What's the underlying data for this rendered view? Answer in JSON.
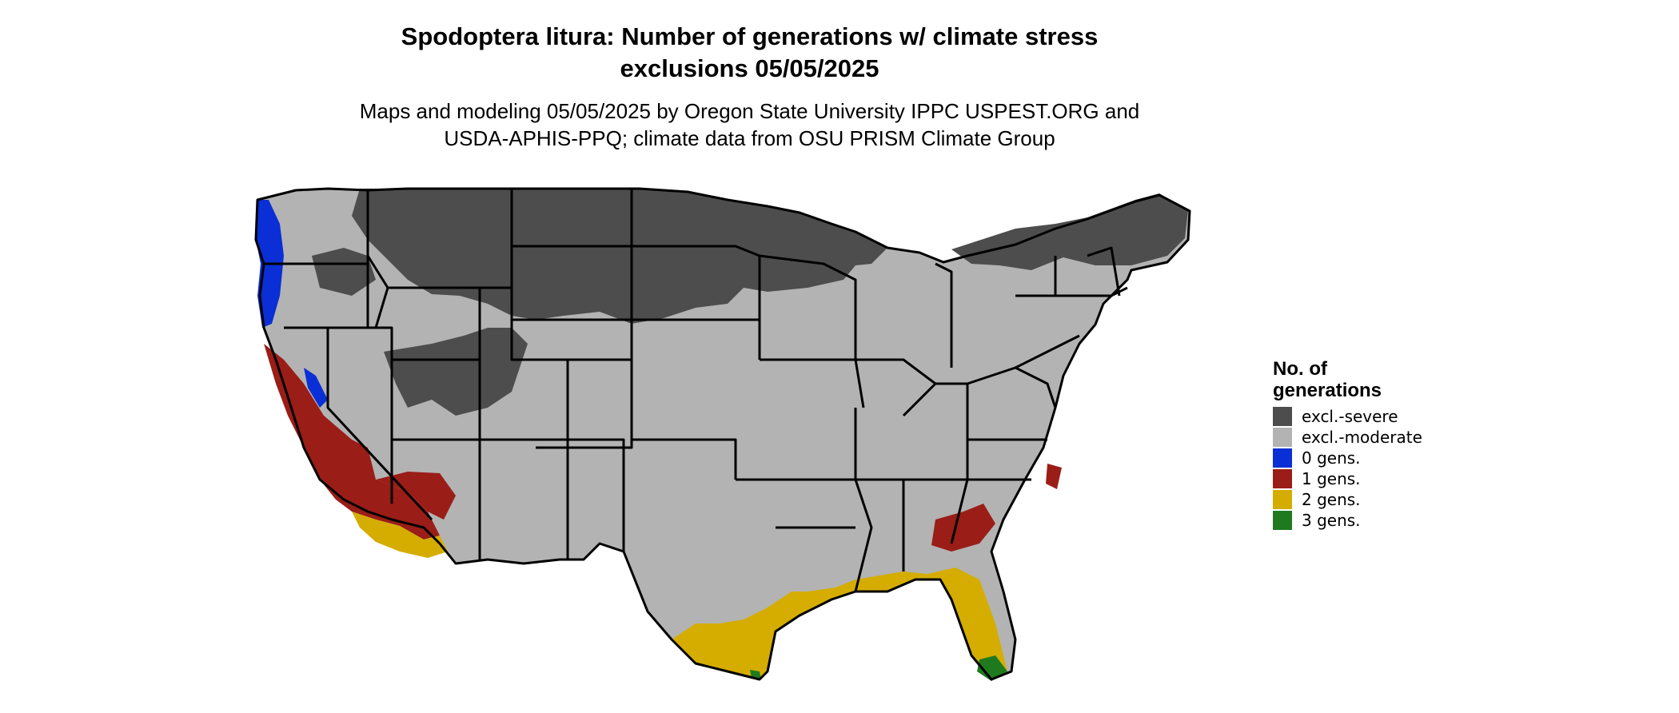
{
  "title_line1": "Spodoptera litura: Number of generations w/ climate stress",
  "title_line2": "exclusions 05/05/2025",
  "subtitle_line1": "Maps and modeling 05/05/2025 by Oregon State University IPPC USPEST.ORG and",
  "subtitle_line2": "USDA-APHIS-PPQ; climate data from OSU PRISM Climate Group",
  "legend": {
    "title_line1": "No. of",
    "title_line2": "generations",
    "items": [
      {
        "label": "excl.-severe",
        "color": "#4d4d4d"
      },
      {
        "label": "excl.-moderate",
        "color": "#b3b3b3"
      },
      {
        "label": "0 gens.",
        "color": "#0a2fd6"
      },
      {
        "label": "1 gens.",
        "color": "#9a1d17"
      },
      {
        "label": "2 gens.",
        "color": "#d4ad00"
      },
      {
        "label": "3 gens.",
        "color": "#1f7a1f"
      }
    ]
  }
}
